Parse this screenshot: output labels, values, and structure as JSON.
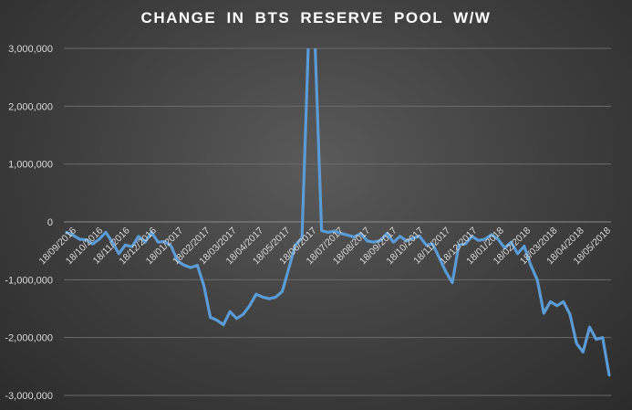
{
  "chart_data": {
    "type": "line",
    "title": "CHANGE IN BTS RESERVE POOL W/W",
    "xlabel": "",
    "ylabel": "",
    "ylim": [
      -3000000,
      3000000
    ],
    "y_ticks": [
      3000000,
      2000000,
      1000000,
      0,
      -1000000,
      -2000000,
      -3000000
    ],
    "y_tick_labels": [
      "3,000,000",
      "2,000,000",
      "1,000,000",
      "0",
      "-1,000,000",
      "-2,000,000",
      "-3,000,000"
    ],
    "x_tick_labels": [
      "18/09/2016",
      "18/10/2016",
      "18/11/2016",
      "18/12/2016",
      "18/01/2017",
      "18/02/2017",
      "18/03/2017",
      "18/04/2017",
      "18/05/2017",
      "18/06/2017",
      "18/07/2017",
      "18/08/2017",
      "18/09/2017",
      "18/10/2017",
      "18/11/2017",
      "18/12/2017",
      "18/01/2018",
      "18/02/2018",
      "18/03/2018",
      "18/04/2018",
      "18/05/2018"
    ],
    "grid": true,
    "line_color": "#5b9bd5",
    "series": [
      {
        "values": [
          -180000,
          -230000,
          -300000,
          -310000,
          -380000,
          -300000,
          -180000,
          -350000,
          -550000,
          -400000,
          -430000,
          -250000,
          -350000,
          -180000,
          -350000,
          -340000,
          -420000,
          -680000,
          -750000,
          -790000,
          -750000,
          -1100000,
          -1650000,
          -1700000,
          -1780000,
          -1550000,
          -1670000,
          -1600000,
          -1450000,
          -1250000,
          -1300000,
          -1330000,
          -1300000,
          -1200000,
          -800000,
          -400000,
          -280000,
          3100000,
          3100000,
          -150000,
          -180000,
          -160000,
          -200000,
          -230000,
          -260000,
          -200000,
          -330000,
          -350000,
          -320000,
          -200000,
          -350000,
          -250000,
          -330000,
          -280000,
          -250000,
          -400000,
          -380000,
          -620000,
          -860000,
          -1050000,
          -400000,
          -380000,
          -250000,
          -320000,
          -300000,
          -220000,
          -300000,
          -450000,
          -350000,
          -550000,
          -420000,
          -750000,
          -1000000,
          -1580000,
          -1380000,
          -1450000,
          -1380000,
          -1600000,
          -2100000,
          -2250000,
          -1820000,
          -2030000,
          -2000000,
          -2650000
        ]
      }
    ]
  }
}
